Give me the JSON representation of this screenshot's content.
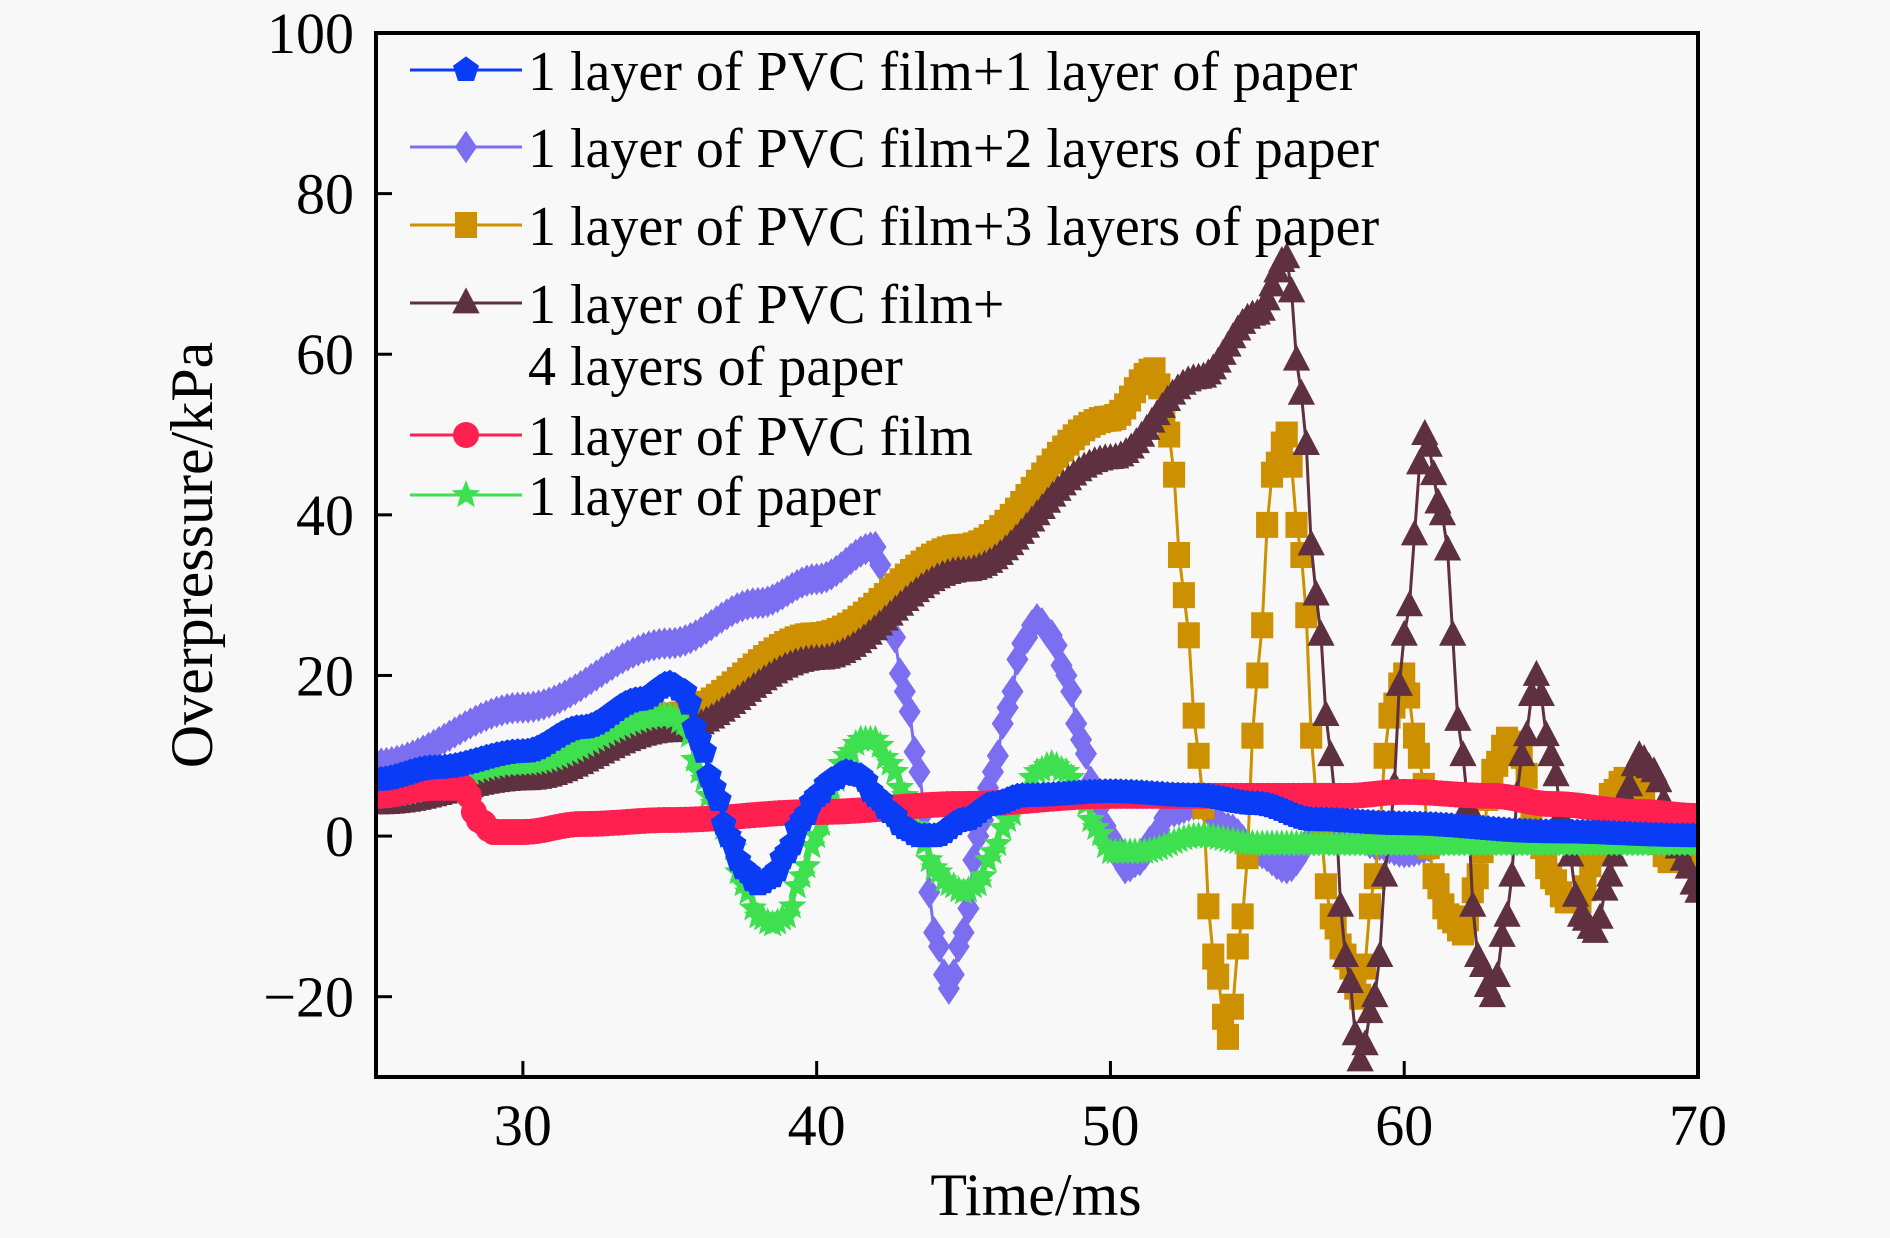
{
  "chart_data": {
    "type": "line",
    "title": "",
    "xlabel": "Time/ms",
    "ylabel": "Overpressure/kPa",
    "xlim": [
      25,
      70
    ],
    "ylim": [
      -30,
      100
    ],
    "xticks": [
      30,
      40,
      50,
      60,
      70
    ],
    "yticks": [
      -20,
      0,
      20,
      40,
      60,
      80,
      100
    ],
    "xtick_labels": [
      "30",
      "40",
      "50",
      "60",
      "70"
    ],
    "ytick_labels": [
      "−20",
      "0",
      "20",
      "40",
      "60",
      "80",
      "100"
    ],
    "grid": false,
    "legend_position": "top-left",
    "series": [
      {
        "name": "1 layer of PVC film+1 layer of paper",
        "label_lines": [
          "1 layer of PVC film+1 layer of paper"
        ],
        "color": "#0b3cf5",
        "marker": "pentagon",
        "x": [
          25,
          27,
          30,
          32,
          34,
          35,
          35.5,
          36,
          36.5,
          37,
          37.5,
          38,
          38.5,
          39,
          39.5,
          40,
          40.5,
          41,
          41.5,
          42,
          42.5,
          43,
          43.5,
          44,
          45,
          46,
          47,
          50,
          53,
          55,
          57,
          60,
          65,
          70
        ],
        "y": [
          7,
          8.5,
          10.5,
          13.5,
          17,
          19,
          18,
          12,
          6,
          0,
          -4,
          -6,
          -5,
          -2,
          2,
          5,
          7,
          8,
          7.5,
          5,
          3,
          1,
          0,
          0,
          2,
          4,
          5,
          5.5,
          5,
          4,
          2,
          1.5,
          0.5,
          0
        ]
      },
      {
        "name": "1 layer of PVC film+2 layers of paper",
        "label_lines": [
          "1 layer of PVC film+2 layers of paper"
        ],
        "color": "#7b6ef0",
        "marker": "diamond",
        "x": [
          25,
          30,
          35,
          38,
          40,
          42,
          42.5,
          43,
          43.5,
          44,
          44.5,
          45,
          45.5,
          46,
          46.5,
          47,
          47.5,
          48,
          48.5,
          49,
          49.5,
          50,
          50.5,
          51,
          51.5,
          52,
          53,
          54,
          55,
          56,
          57,
          58,
          59,
          60,
          62,
          65,
          70
        ],
        "y": [
          9,
          16,
          24,
          29,
          32,
          36,
          27,
          18,
          8,
          -12,
          -19,
          -12,
          0,
          8,
          16,
          24,
          27,
          25,
          20,
          12,
          5,
          0,
          -4,
          -3,
          0,
          3,
          4,
          1,
          -2,
          -4,
          0,
          1,
          -1,
          -2,
          0,
          0,
          0
        ]
      },
      {
        "name": "1 layer of PVC film+3 layers of paper",
        "label_lines": [
          "1 layer of PVC film+3 layers of paper"
        ],
        "color": "#cc9000",
        "marker": "square",
        "x": [
          25,
          30,
          35,
          40,
          45,
          50,
          51.5,
          52,
          52.5,
          53,
          53.5,
          54,
          54.5,
          55,
          55.5,
          56,
          56.5,
          57,
          57.5,
          58,
          58.5,
          59,
          59.5,
          60,
          60.5,
          61,
          61.5,
          62,
          62.5,
          63,
          63.5,
          64,
          64.5,
          65,
          65.5,
          66,
          66.5,
          67,
          67.5,
          68,
          68.5,
          69,
          70
        ],
        "y": [
          5,
          8,
          15,
          25,
          36,
          52,
          58,
          50,
          30,
          10,
          -15,
          -25,
          -10,
          20,
          45,
          50,
          35,
          5,
          -10,
          -15,
          -20,
          -5,
          15,
          20,
          10,
          -5,
          -10,
          -12,
          -5,
          8,
          12,
          10,
          0,
          -5,
          -8,
          -8,
          -2,
          5,
          7,
          6,
          0,
          -3,
          -2
        ]
      },
      {
        "name": "1 layer of PVC film+4 layers of paper",
        "label_lines": [
          "1 layer of PVC film+",
          "4 layers of paper"
        ],
        "color": "#5f3040",
        "marker": "triangle",
        "x": [
          25,
          30,
          35,
          40,
          45,
          50,
          53,
          55,
          56,
          56.5,
          57,
          57.5,
          58,
          58.5,
          59,
          59.5,
          60,
          60.7,
          61.3,
          62,
          62.5,
          63,
          63.5,
          64,
          64.5,
          65,
          65.5,
          66,
          66.5,
          67,
          67.5,
          68,
          68.5,
          69,
          69.5,
          70
        ],
        "y": [
          4,
          7,
          13,
          22,
          33,
          47,
          57,
          65,
          72,
          55,
          30,
          10,
          -15,
          -28,
          -20,
          0,
          25,
          50,
          40,
          10,
          -15,
          -20,
          -10,
          10,
          20,
          10,
          0,
          -10,
          -12,
          -5,
          5,
          10,
          8,
          3,
          -3,
          -7
        ]
      },
      {
        "name": "1 layer of PVC film",
        "label_lines": [
          "1 layer of PVC film"
        ],
        "color": "#ff2050",
        "marker": "circle",
        "x": [
          25,
          27,
          28,
          28.5,
          29,
          30,
          32,
          35,
          40,
          45,
          50,
          55,
          58,
          60,
          63,
          65,
          68,
          70
        ],
        "y": [
          5,
          6,
          6,
          2,
          0.5,
          0.5,
          1.5,
          2,
          3,
          4,
          5,
          5,
          5,
          5.5,
          5,
          4,
          3,
          2.5
        ]
      },
      {
        "name": "1 layer of paper",
        "label_lines": [
          "1 layer of paper"
        ],
        "color": "#3ee050",
        "marker": "star",
        "x": [
          25,
          30,
          35,
          35.5,
          36,
          36.5,
          37,
          37.5,
          38,
          38.5,
          39,
          39.5,
          40,
          40.5,
          41,
          41.5,
          42,
          42.5,
          43,
          43.5,
          44,
          44.5,
          45,
          45.5,
          46,
          46.5,
          47,
          47.5,
          48,
          48.5,
          49,
          49.5,
          50,
          51,
          53,
          55,
          57,
          60,
          70
        ],
        "y": [
          5,
          9,
          15,
          14,
          8,
          4,
          0,
          -6,
          -10,
          -11,
          -10,
          -5,
          0,
          6,
          10,
          12,
          12,
          9,
          5,
          0,
          -4,
          -6,
          -7,
          -6,
          -2,
          2,
          5,
          8,
          9,
          8,
          5,
          1,
          -2,
          -2,
          0,
          -1,
          -1,
          -1,
          -1
        ]
      }
    ]
  }
}
